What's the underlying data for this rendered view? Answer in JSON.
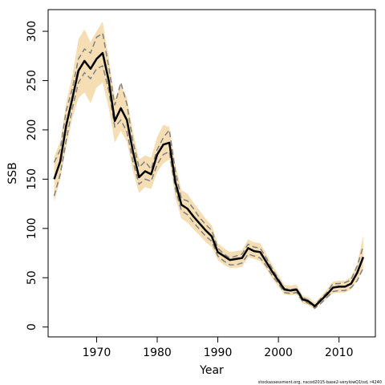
{
  "chart_data": {
    "type": "line",
    "xlabel": "Year",
    "ylabel": "SSB",
    "footnote": "stockassessment.org, nscod2015-base2-verylowQ1tsd, r4240",
    "xlim": [
      1962,
      2016
    ],
    "ylim": [
      -10,
      322
    ],
    "x_ticks": [
      1970,
      1980,
      1990,
      2000,
      2010
    ],
    "y_ticks": [
      0,
      50,
      100,
      150,
      200,
      250,
      300
    ],
    "grid": false,
    "colors": {
      "band": "#f5deb3",
      "estimate": "#000000",
      "dashed": "#808080"
    },
    "x": [
      1963,
      1964,
      1965,
      1966,
      1967,
      1968,
      1969,
      1970,
      1971,
      1972,
      1973,
      1974,
      1975,
      1976,
      1977,
      1978,
      1979,
      1980,
      1981,
      1982,
      1983,
      1984,
      1985,
      1986,
      1987,
      1988,
      1989,
      1990,
      1991,
      1992,
      1993,
      1994,
      1995,
      1996,
      1997,
      1998,
      1999,
      2000,
      2001,
      2002,
      2003,
      2004,
      2005,
      2006,
      2007,
      2008,
      2009,
      2010,
      2011,
      2012,
      2013,
      2014
    ],
    "series": [
      {
        "role": "estimate",
        "values": [
          150,
          168,
          205,
          232,
          260,
          270,
          262,
          272,
          278,
          250,
          209,
          222,
          210,
          178,
          152,
          158,
          155,
          175,
          185,
          187,
          147,
          124,
          120,
          112,
          105,
          98,
          92,
          76,
          72,
          68,
          69,
          70,
          80,
          77,
          76,
          66,
          56,
          47,
          38,
          37,
          38,
          28,
          26,
          21,
          27,
          33,
          40,
          41,
          41,
          44,
          55,
          71
        ]
      },
      {
        "role": "band-upper",
        "values": [
          173,
          188,
          228,
          255,
          292,
          302,
          289,
          300,
          310,
          273,
          232,
          245,
          233,
          198,
          170,
          174,
          172,
          193,
          205,
          203,
          165,
          139,
          135,
          126,
          118,
          110,
          103,
          85,
          80,
          76,
          77,
          78,
          89,
          86,
          85,
          74,
          63,
          53,
          43,
          42,
          43,
          32,
          30,
          25,
          31,
          38,
          46,
          47,
          47,
          51,
          64,
          93
        ]
      },
      {
        "role": "band-lower",
        "values": [
          127,
          150,
          183,
          212,
          232,
          238,
          227,
          243,
          248,
          222,
          187,
          199,
          188,
          158,
          136,
          142,
          140,
          157,
          166,
          170,
          131,
          110,
          106,
          99,
          93,
          86,
          81,
          68,
          63,
          60,
          60,
          61,
          71,
          69,
          67,
          59,
          49,
          41,
          33,
          32,
          33,
          24,
          22,
          18,
          23,
          29,
          34,
          35,
          35,
          38,
          47,
          58
        ]
      },
      {
        "role": "dashed-1",
        "values": [
          167,
          180,
          220,
          242,
          272,
          282,
          278,
          294,
          298,
          264,
          225,
          248,
          226,
          188,
          162,
          168,
          160,
          180,
          192,
          200,
          158,
          130,
          128,
          120,
          111,
          104,
          98,
          80,
          74,
          70,
          72,
          74,
          84,
          81,
          80,
          70,
          59,
          49,
          39,
          38,
          39,
          30,
          27,
          22,
          29,
          35,
          44,
          44,
          45,
          48,
          62,
          82
        ]
      },
      {
        "role": "dashed-2",
        "values": [
          133,
          155,
          190,
          222,
          248,
          258,
          252,
          262,
          265,
          240,
          203,
          210,
          198,
          168,
          145,
          150,
          148,
          165,
          175,
          178,
          140,
          118,
          114,
          106,
          99,
          92,
          87,
          72,
          67,
          63,
          63,
          65,
          74,
          72,
          70,
          62,
          52,
          44,
          35,
          34,
          35,
          26,
          24,
          19,
          24,
          30,
          36,
          37,
          37,
          40,
          47,
          60
        ]
      }
    ]
  }
}
